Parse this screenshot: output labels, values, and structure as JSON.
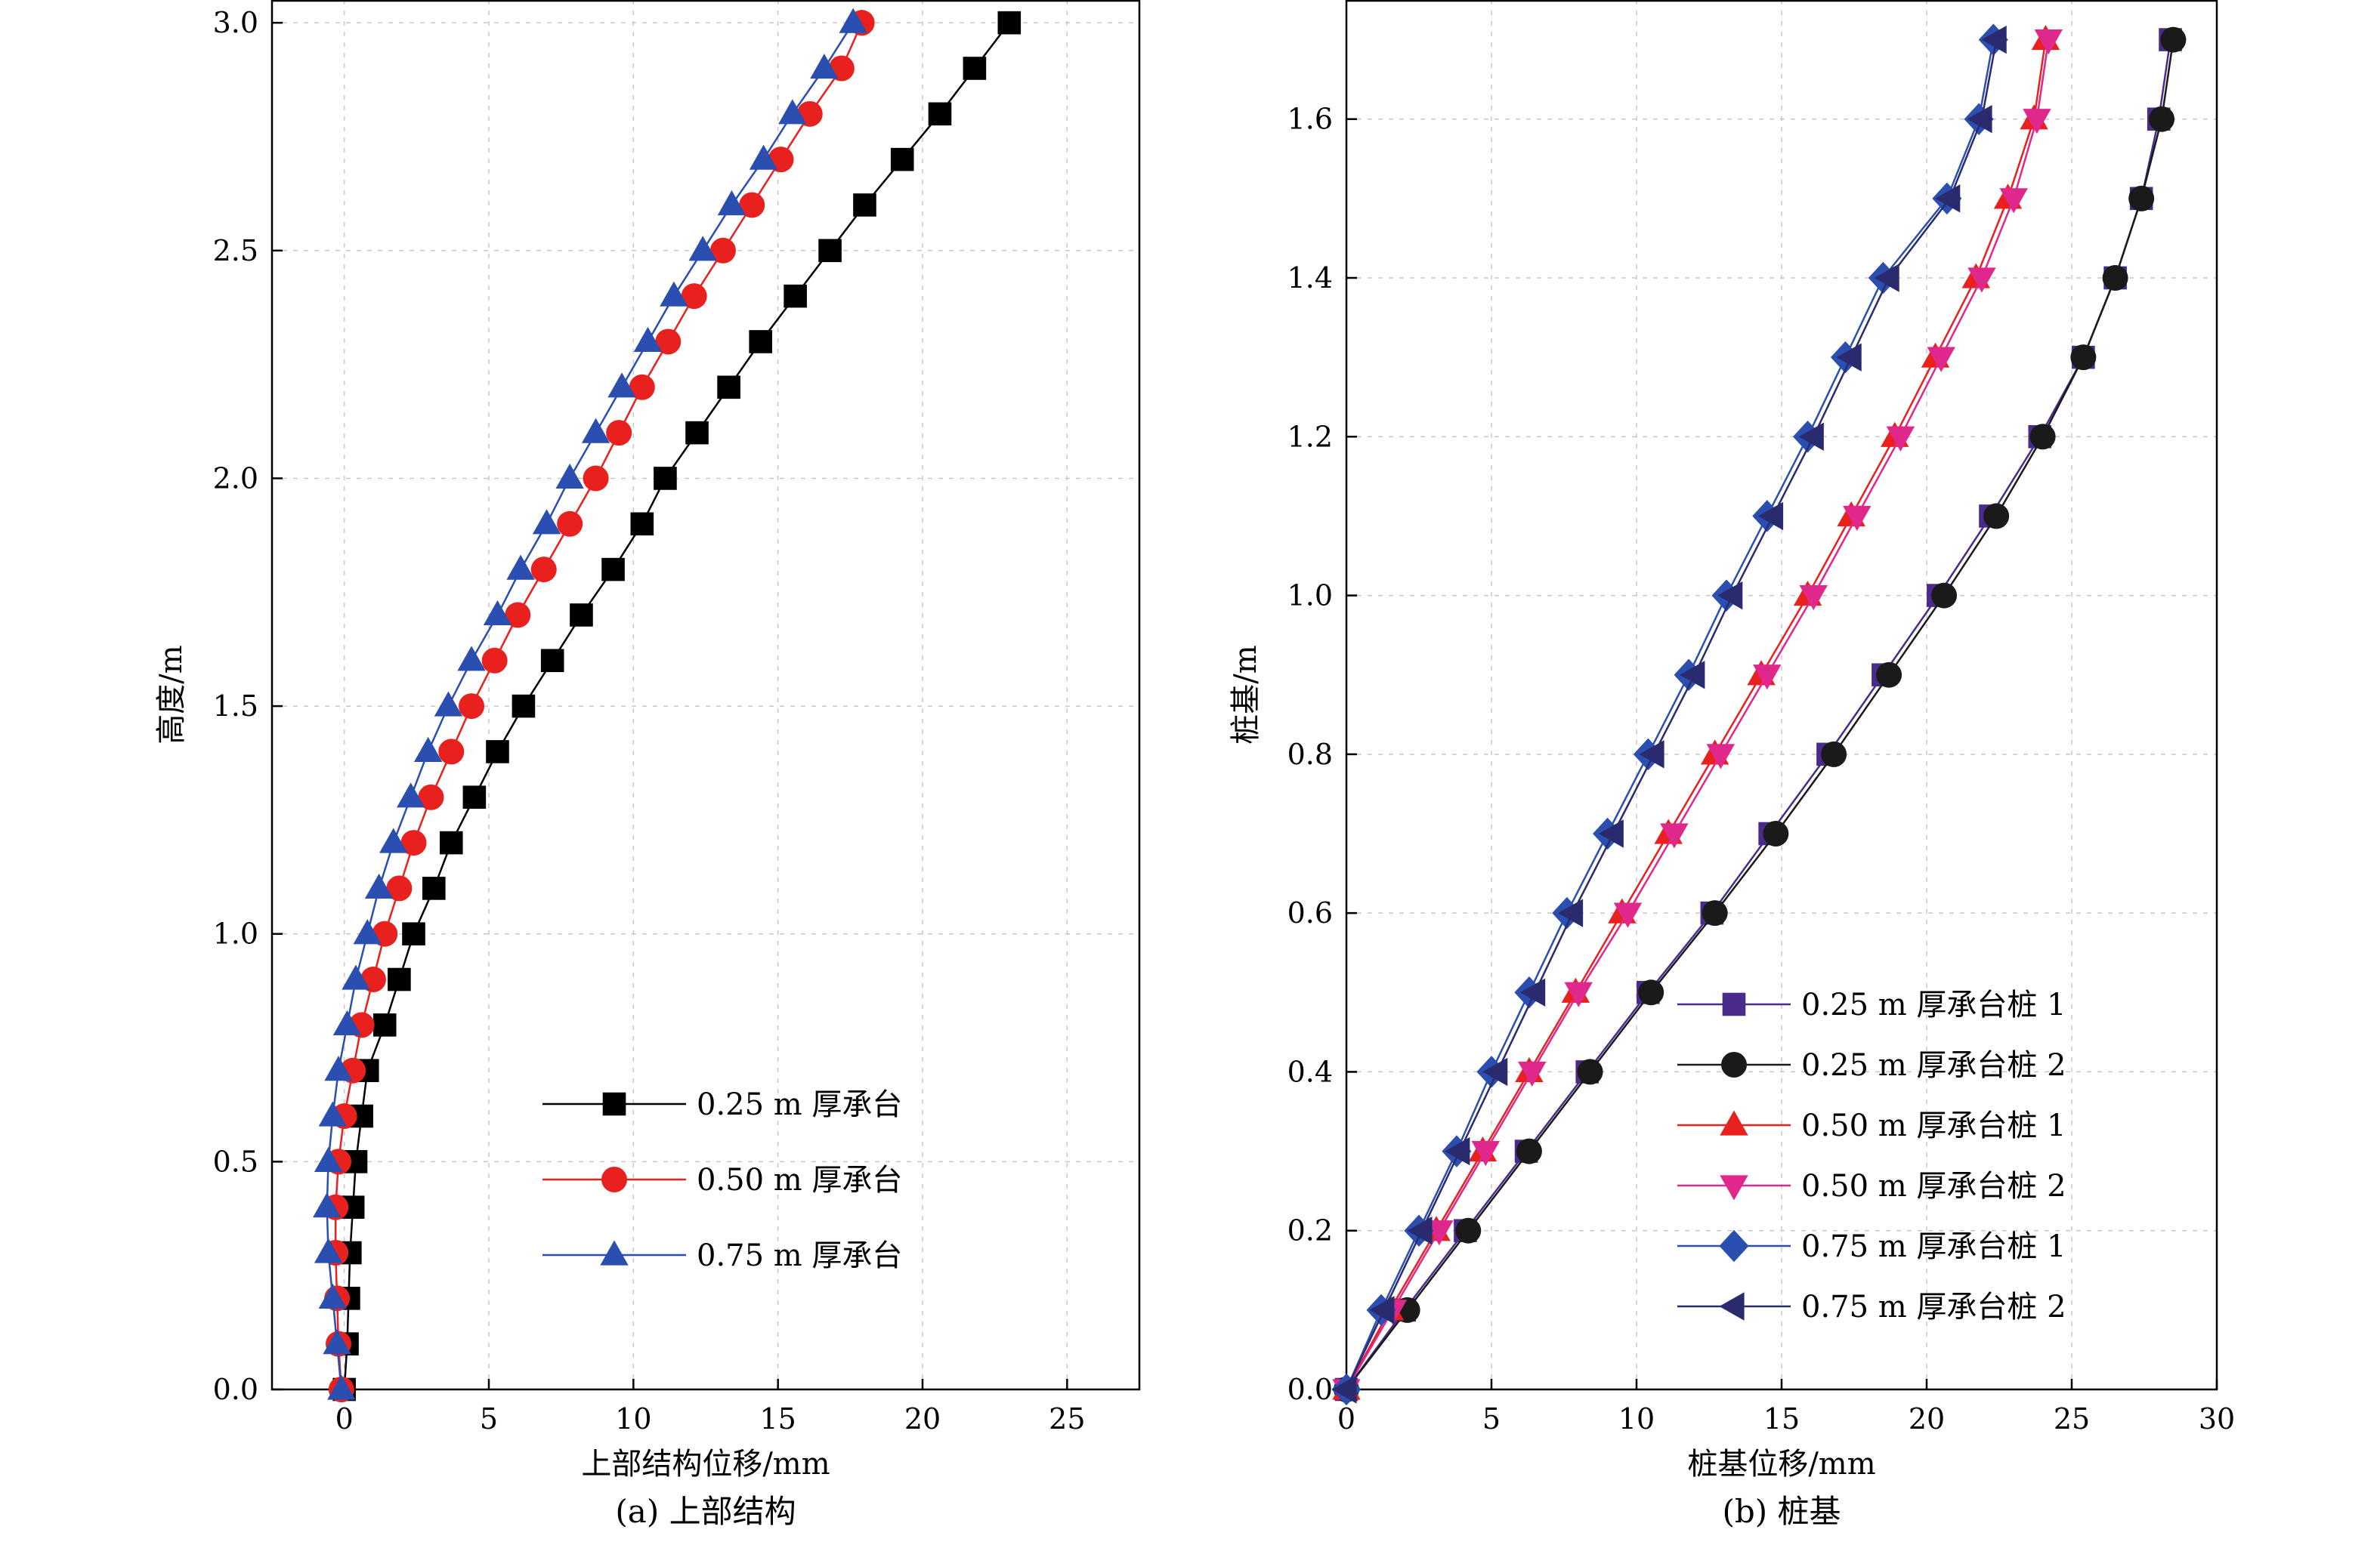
{
  "chart_data": [
    {
      "type": "line",
      "caption": "(a) 上部结构",
      "xlabel": "上部结构位移/mm",
      "ylabel": "高度/m",
      "xlim": [
        -2.5,
        27.5
      ],
      "ylim": [
        0,
        3.05
      ],
      "xticks": [
        "0",
        "5",
        "10",
        "15",
        "20",
        "25"
      ],
      "yticks": [
        "0.0",
        "0.5",
        "1.0",
        "1.5",
        "2.0",
        "2.5",
        "3.0"
      ],
      "grid": true,
      "legend_position": "lower-right",
      "series": [
        {
          "name": "0.25 m 厚承台",
          "color": "#000000",
          "marker": "square",
          "x": [
            0,
            0.1,
            0.15,
            0.2,
            0.3,
            0.4,
            0.6,
            0.8,
            1.4,
            1.9,
            2.4,
            3.1,
            3.7,
            4.5,
            5.3,
            6.2,
            7.2,
            8.2,
            9.3,
            10.3,
            11.1,
            12.2,
            13.3,
            14.4,
            15.6,
            16.8,
            18.0,
            19.3,
            20.6,
            21.8,
            23.0
          ],
          "y": [
            0,
            0.1,
            0.2,
            0.3,
            0.4,
            0.5,
            0.6,
            0.7,
            0.8,
            0.9,
            1.0,
            1.1,
            1.2,
            1.3,
            1.4,
            1.5,
            1.6,
            1.7,
            1.8,
            1.9,
            2.0,
            2.1,
            2.2,
            2.3,
            2.4,
            2.5,
            2.6,
            2.7,
            2.8,
            2.9,
            3.0
          ]
        },
        {
          "name": "0.50 m 厚承台",
          "color": "#e8201e",
          "marker": "circle",
          "x": [
            -0.1,
            -0.2,
            -0.25,
            -0.3,
            -0.3,
            -0.2,
            0.0,
            0.3,
            0.6,
            1.0,
            1.4,
            1.9,
            2.4,
            3.0,
            3.7,
            4.4,
            5.2,
            6.0,
            6.9,
            7.8,
            8.7,
            9.5,
            10.3,
            11.2,
            12.1,
            13.1,
            14.1,
            15.1,
            16.1,
            17.2,
            17.9
          ],
          "y": [
            0,
            0.1,
            0.2,
            0.3,
            0.4,
            0.5,
            0.6,
            0.7,
            0.8,
            0.9,
            1.0,
            1.1,
            1.2,
            1.3,
            1.4,
            1.5,
            1.6,
            1.7,
            1.8,
            1.9,
            2.0,
            2.1,
            2.2,
            2.3,
            2.4,
            2.5,
            2.6,
            2.7,
            2.8,
            2.9,
            3.0
          ]
        },
        {
          "name": "0.75 m 厚承台",
          "color": "#2a4fb0",
          "marker": "triangle-up",
          "x": [
            -0.1,
            -0.25,
            -0.4,
            -0.55,
            -0.6,
            -0.55,
            -0.4,
            -0.2,
            0.1,
            0.4,
            0.8,
            1.2,
            1.7,
            2.3,
            2.9,
            3.6,
            4.4,
            5.3,
            6.1,
            7.0,
            7.8,
            8.7,
            9.6,
            10.5,
            11.4,
            12.4,
            13.4,
            14.5,
            15.5,
            16.6,
            17.6
          ],
          "y": [
            0,
            0.1,
            0.2,
            0.3,
            0.4,
            0.5,
            0.6,
            0.7,
            0.8,
            0.9,
            1.0,
            1.1,
            1.2,
            1.3,
            1.4,
            1.5,
            1.6,
            1.7,
            1.8,
            1.9,
            2.0,
            2.1,
            2.2,
            2.3,
            2.4,
            2.5,
            2.6,
            2.7,
            2.8,
            2.9,
            3.0
          ]
        }
      ]
    },
    {
      "type": "line",
      "caption": "(b) 桩基",
      "xlabel": "桩基位移/mm",
      "ylabel": "桩基/m",
      "xlim": [
        0,
        30
      ],
      "ylim": [
        0,
        1.75
      ],
      "xticks": [
        "0",
        "5",
        "10",
        "15",
        "20",
        "25",
        "30"
      ],
      "yticks": [
        "0.0",
        "0.2",
        "0.4",
        "0.6",
        "0.8",
        "1.0",
        "1.2",
        "1.4",
        "1.6"
      ],
      "grid": true,
      "legend_position": "lower-right",
      "series": [
        {
          "name": "0.25 m 厚承台桩 1",
          "color": "#4a2a8a",
          "marker": "square",
          "x": [
            0,
            2.0,
            4.1,
            6.2,
            8.3,
            10.4,
            12.6,
            14.6,
            16.6,
            18.5,
            20.4,
            22.2,
            23.9,
            25.4,
            26.5,
            27.4,
            28.0,
            28.4
          ],
          "y": [
            0,
            0.1,
            0.2,
            0.3,
            0.4,
            0.5,
            0.6,
            0.7,
            0.8,
            0.9,
            1.0,
            1.1,
            1.2,
            1.3,
            1.4,
            1.5,
            1.6,
            1.7
          ]
        },
        {
          "name": "0.25 m 厚承台桩 2",
          "color": "#1a1a1a",
          "marker": "circle",
          "x": [
            0,
            2.1,
            4.2,
            6.3,
            8.4,
            10.5,
            12.7,
            14.8,
            16.8,
            18.7,
            20.6,
            22.4,
            24.0,
            25.4,
            26.5,
            27.4,
            28.1,
            28.5
          ],
          "y": [
            0,
            0.1,
            0.2,
            0.3,
            0.4,
            0.5,
            0.6,
            0.7,
            0.8,
            0.9,
            1.0,
            1.1,
            1.2,
            1.3,
            1.4,
            1.5,
            1.6,
            1.7
          ]
        },
        {
          "name": "0.50 m 厚承台桩 1",
          "color": "#e8201e",
          "marker": "triangle-up",
          "x": [
            0,
            1.5,
            3.1,
            4.7,
            6.3,
            7.9,
            9.5,
            11.1,
            12.7,
            14.3,
            15.9,
            17.4,
            18.9,
            20.3,
            21.7,
            22.8,
            23.7,
            24.1
          ],
          "y": [
            0,
            0.1,
            0.2,
            0.3,
            0.4,
            0.5,
            0.6,
            0.7,
            0.8,
            0.9,
            1.0,
            1.1,
            1.2,
            1.3,
            1.4,
            1.5,
            1.6,
            1.7
          ]
        },
        {
          "name": "0.50 m 厚承台桩 2",
          "color": "#e0288c",
          "marker": "triangle-down",
          "x": [
            0,
            1.6,
            3.2,
            4.8,
            6.4,
            8.0,
            9.7,
            11.3,
            12.9,
            14.5,
            16.1,
            17.6,
            19.1,
            20.5,
            21.9,
            23.0,
            23.8,
            24.2
          ],
          "y": [
            0,
            0.1,
            0.2,
            0.3,
            0.4,
            0.5,
            0.6,
            0.7,
            0.8,
            0.9,
            1.0,
            1.1,
            1.2,
            1.3,
            1.4,
            1.5,
            1.6,
            1.7
          ]
        },
        {
          "name": "0.75 m 厚承台桩 1",
          "color": "#2a4fb0",
          "marker": "diamond",
          "x": [
            0,
            1.2,
            2.5,
            3.8,
            5.0,
            6.3,
            7.6,
            9.0,
            10.4,
            11.8,
            13.1,
            14.5,
            15.9,
            17.2,
            18.5,
            20.7,
            21.8,
            22.3
          ],
          "y": [
            0,
            0.1,
            0.2,
            0.3,
            0.4,
            0.5,
            0.6,
            0.7,
            0.8,
            0.9,
            1.0,
            1.1,
            1.2,
            1.3,
            1.4,
            1.5,
            1.6,
            1.7
          ]
        },
        {
          "name": "0.75 m 厚承台桩 2",
          "color": "#2a2a6e",
          "marker": "triangle-left",
          "x": [
            0,
            1.3,
            2.6,
            3.9,
            5.2,
            6.5,
            7.8,
            9.2,
            10.6,
            12.0,
            13.3,
            14.7,
            16.1,
            17.4,
            18.7,
            20.8,
            21.9,
            22.4
          ],
          "y": [
            0,
            0.1,
            0.2,
            0.3,
            0.4,
            0.5,
            0.6,
            0.7,
            0.8,
            0.9,
            1.0,
            1.1,
            1.2,
            1.3,
            1.4,
            1.5,
            1.6,
            1.7
          ]
        }
      ]
    }
  ]
}
